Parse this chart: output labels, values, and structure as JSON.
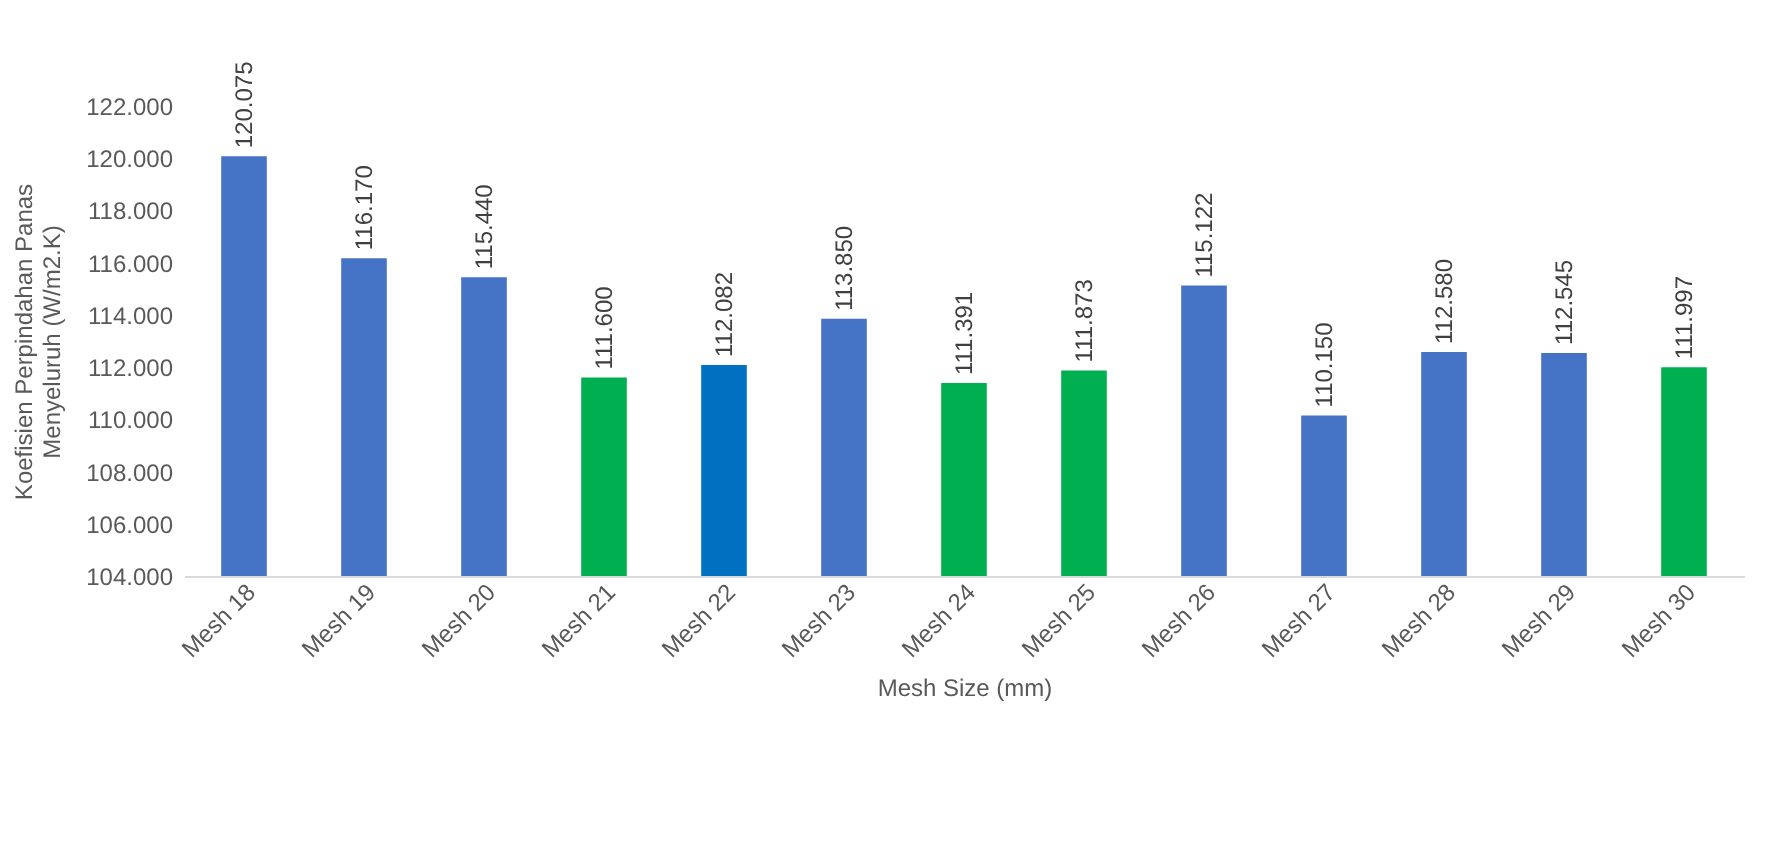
{
  "chart_data": {
    "type": "bar",
    "xlabel": "Mesh Size (mm)",
    "ylabel": "Koefisien Perpindahan Panas Menyeluruh (W/m2.K)",
    "categories": [
      "Mesh 18",
      "Mesh 19",
      "Mesh 20",
      "Mesh 21",
      "Mesh 22",
      "Mesh 23",
      "Mesh 24",
      "Mesh 25",
      "Mesh 26",
      "Mesh 27",
      "Mesh 28",
      "Mesh 29",
      "Mesh 30"
    ],
    "values": [
      120.075,
      116.17,
      115.44,
      111.6,
      112.082,
      113.85,
      111.391,
      111.873,
      115.122,
      110.15,
      112.58,
      112.545,
      111.997
    ],
    "value_labels": [
      "120.075",
      "116.170",
      "115.440",
      "111.600",
      "112.082",
      "113.850",
      "111.391",
      "111.873",
      "115.122",
      "110.150",
      "112.580",
      "112.545",
      "111.997"
    ],
    "colors": [
      "#4472c4",
      "#4472c4",
      "#4472c4",
      "#00b050",
      "#0070c0",
      "#4472c4",
      "#00b050",
      "#00b050",
      "#4472c4",
      "#4472c4",
      "#4472c4",
      "#4472c4",
      "#00b050"
    ],
    "ylim": [
      104,
      122
    ],
    "yticks": [
      {
        "value": 104,
        "label": "104.000"
      },
      {
        "value": 106,
        "label": "106.000"
      },
      {
        "value": 108,
        "label": "108.000"
      },
      {
        "value": 110,
        "label": "110.000"
      },
      {
        "value": 112,
        "label": "112.000"
      },
      {
        "value": 114,
        "label": "114.000"
      },
      {
        "value": 116,
        "label": "116.000"
      },
      {
        "value": 118,
        "label": "118.000"
      },
      {
        "value": 120,
        "label": "120.000"
      },
      {
        "value": 122,
        "label": "122.000"
      }
    ]
  }
}
